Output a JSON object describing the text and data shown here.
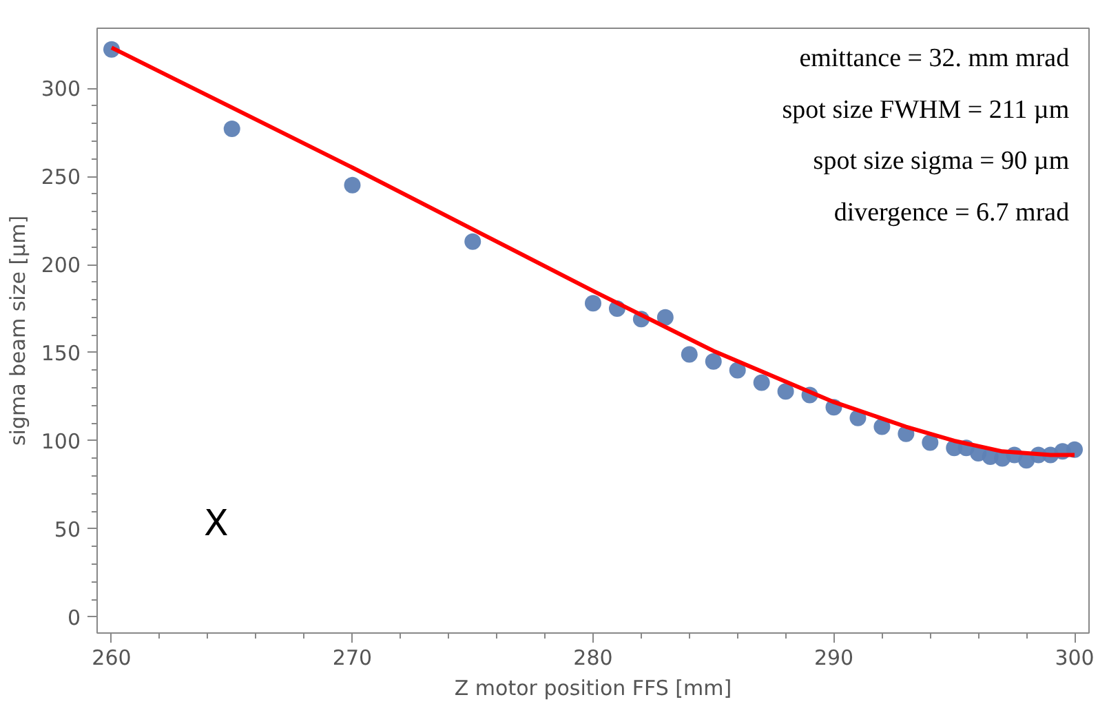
{
  "chart_data": {
    "type": "scatter",
    "xlabel": "Z motor position FFS [mm]",
    "ylabel": "sigma beam size [µm]",
    "annotations": [
      "emittance = 32. mm mrad",
      "spot size FWHM = 211 µm",
      "spot size sigma = 90 µm",
      "divergence = 6.7 mrad",
      "X"
    ],
    "x": [
      260,
      265,
      270,
      275,
      280,
      281,
      282,
      283,
      284,
      285,
      286,
      287,
      288,
      289,
      290,
      291,
      292,
      293,
      294,
      295,
      295.5,
      296,
      296.5,
      297,
      297.5,
      298,
      298.5,
      299,
      299.5,
      300
    ],
    "series": [
      {
        "marker": "circle",
        "color": "#5e81b5",
        "values": [
          322,
          277,
          245,
          213,
          178,
          175,
          169,
          170,
          149,
          145,
          140,
          133,
          128,
          126,
          119,
          113,
          108,
          104,
          99,
          96,
          96,
          93,
          91,
          90,
          92,
          89,
          92,
          92,
          94,
          95
        ]
      },
      {
        "type": "line",
        "color": "#ff0000",
        "x": [
          260,
          265,
          270,
          275,
          280,
          285,
          290,
          293,
          295,
          297,
          299,
          300
        ],
        "values": [
          323,
          289,
          255,
          220,
          185,
          151,
          122,
          108,
          100,
          94,
          92,
          92
        ]
      }
    ],
    "xlim": [
      259.4,
      300.6
    ],
    "ylim": [
      -9,
      334
    ],
    "xticks": [
      260,
      270,
      280,
      290,
      300
    ],
    "yticks": [
      0,
      50,
      100,
      150,
      200,
      250,
      300
    ],
    "grid": false,
    "line_style": "solid"
  }
}
